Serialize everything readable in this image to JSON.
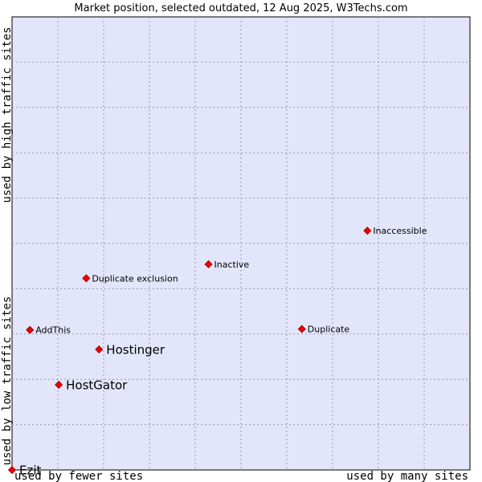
{
  "chart_data": {
    "type": "scatter",
    "title": "Market position, selected outdated, 12 Aug 2025, W3Techs.com",
    "x_axis": {
      "low_label": "used by fewer sites",
      "high_label": "used by many sites",
      "range": [
        0,
        100
      ]
    },
    "y_axis": {
      "low_label": "used by low traffic sites",
      "high_label": "used by high traffic sites",
      "range": [
        0,
        100
      ]
    },
    "grid": true,
    "points": [
      {
        "name": "Ezit",
        "x": 0,
        "y": 0,
        "emphasis": true
      },
      {
        "name": "HostGator",
        "x": 10.2,
        "y": 18.8,
        "emphasis": true
      },
      {
        "name": "Hostinger",
        "x": 19.0,
        "y": 26.6,
        "emphasis": true
      },
      {
        "name": "AddThis",
        "x": 3.9,
        "y": 30.9,
        "emphasis": false
      },
      {
        "name": "Duplicate",
        "x": 63.3,
        "y": 31.1,
        "emphasis": false
      },
      {
        "name": "Duplicate exclusion",
        "x": 16.2,
        "y": 42.3,
        "emphasis": false
      },
      {
        "name": "Inactive",
        "x": 42.9,
        "y": 45.4,
        "emphasis": false
      },
      {
        "name": "Inaccessible",
        "x": 77.6,
        "y": 52.8,
        "emphasis": false
      }
    ]
  }
}
